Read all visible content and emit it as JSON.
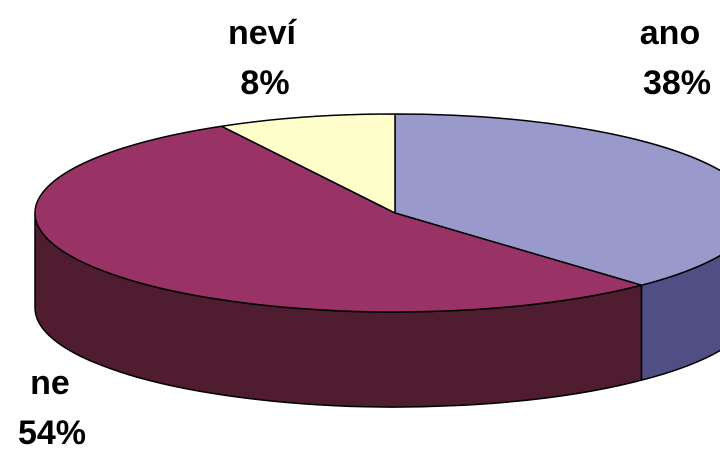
{
  "chart_data": {
    "type": "pie",
    "style": "3d-exploded-perspective",
    "slices": [
      {
        "label": "ano",
        "value": 38,
        "value_label": "38%",
        "color": "#9999cc",
        "side_color": "#4f4f85"
      },
      {
        "label": "ne",
        "value": 54,
        "value_label": "54%",
        "color": "#993366",
        "side_color": "#4f1c30"
      },
      {
        "label": "neví",
        "value": 8,
        "value_label": "8%",
        "color": "#ffffcc",
        "side_color": "#c8c89a"
      }
    ],
    "start_angle_deg": 0,
    "legend": "none"
  }
}
